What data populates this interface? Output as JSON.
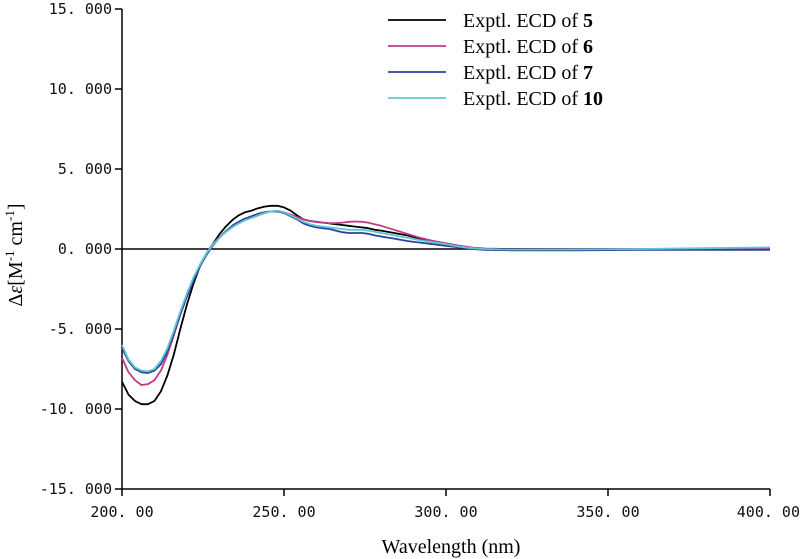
{
  "chart_data": {
    "type": "line",
    "title": "",
    "xlabel": "Wavelength (nm)",
    "ylabel": {
      "prefix": "Δ",
      "symbol": "ε",
      "unit_open": "[M",
      "sup1": "-1",
      "unit_mid": " cm",
      "sup2": "-1",
      "unit_close": "]"
    },
    "xlim": [
      200,
      400
    ],
    "ylim": [
      -15,
      15
    ],
    "x_ticks": [
      200,
      250,
      300,
      350,
      400
    ],
    "x_tick_labels": [
      "200. 00",
      "250. 00",
      "300. 00",
      "350. 00",
      "400. 00"
    ],
    "y_ticks": [
      -15,
      -10,
      -5,
      0,
      5,
      10,
      15
    ],
    "y_tick_labels": [
      "-15. 000",
      "-10. 000",
      "-5. 000",
      "0. 000",
      "5. 000",
      "10. 000",
      "15. 000"
    ],
    "zero_line": true,
    "grid": false,
    "legend_position": "top-right",
    "series": [
      {
        "name": "Exptl. ECD of 5",
        "label_prefix": "Exptl. ECD of ",
        "label_num": "5",
        "color": "#000000",
        "points": [
          [
            200,
            -8.3
          ],
          [
            202,
            -9.1
          ],
          [
            204,
            -9.5
          ],
          [
            206,
            -9.7
          ],
          [
            208,
            -9.7
          ],
          [
            210,
            -9.5
          ],
          [
            212,
            -8.9
          ],
          [
            214,
            -7.9
          ],
          [
            216,
            -6.6
          ],
          [
            218,
            -5.0
          ],
          [
            220,
            -3.5
          ],
          [
            222,
            -2.2
          ],
          [
            224,
            -1.1
          ],
          [
            226,
            -0.3
          ],
          [
            228,
            0.3
          ],
          [
            230,
            0.9
          ],
          [
            232,
            1.4
          ],
          [
            234,
            1.8
          ],
          [
            236,
            2.1
          ],
          [
            238,
            2.3
          ],
          [
            240,
            2.4
          ],
          [
            242,
            2.55
          ],
          [
            244,
            2.65
          ],
          [
            246,
            2.7
          ],
          [
            248,
            2.7
          ],
          [
            250,
            2.6
          ],
          [
            252,
            2.4
          ],
          [
            254,
            2.1
          ],
          [
            256,
            1.85
          ],
          [
            258,
            1.75
          ],
          [
            260,
            1.7
          ],
          [
            262,
            1.65
          ],
          [
            264,
            1.6
          ],
          [
            266,
            1.55
          ],
          [
            268,
            1.5
          ],
          [
            270,
            1.45
          ],
          [
            272,
            1.4
          ],
          [
            274,
            1.35
          ],
          [
            276,
            1.3
          ],
          [
            278,
            1.2
          ],
          [
            280,
            1.15
          ],
          [
            284,
            1.0
          ],
          [
            288,
            0.85
          ],
          [
            292,
            0.65
          ],
          [
            296,
            0.5
          ],
          [
            300,
            0.35
          ],
          [
            304,
            0.2
          ],
          [
            308,
            0.08
          ],
          [
            312,
            0.02
          ],
          [
            320,
            0.0
          ],
          [
            340,
            -0.02
          ],
          [
            360,
            0.0
          ],
          [
            380,
            0.0
          ],
          [
            400,
            0.0
          ]
        ]
      },
      {
        "name": "Exptl. ECD of 6",
        "label_prefix": "Exptl. ECD of ",
        "label_num": "6",
        "color": "#c03a8a",
        "points": [
          [
            200,
            -6.8
          ],
          [
            202,
            -7.7
          ],
          [
            204,
            -8.2
          ],
          [
            206,
            -8.5
          ],
          [
            208,
            -8.45
          ],
          [
            210,
            -8.2
          ],
          [
            212,
            -7.6
          ],
          [
            214,
            -6.6
          ],
          [
            216,
            -5.4
          ],
          [
            218,
            -4.1
          ],
          [
            220,
            -2.9
          ],
          [
            222,
            -1.9
          ],
          [
            224,
            -1.0
          ],
          [
            226,
            -0.3
          ],
          [
            228,
            0.3
          ],
          [
            230,
            0.7
          ],
          [
            232,
            1.1
          ],
          [
            234,
            1.4
          ],
          [
            236,
            1.6
          ],
          [
            238,
            1.8
          ],
          [
            240,
            1.95
          ],
          [
            242,
            2.1
          ],
          [
            244,
            2.25
          ],
          [
            246,
            2.35
          ],
          [
            248,
            2.35
          ],
          [
            250,
            2.3
          ],
          [
            252,
            2.15
          ],
          [
            254,
            2.0
          ],
          [
            256,
            1.85
          ],
          [
            258,
            1.75
          ],
          [
            260,
            1.7
          ],
          [
            262,
            1.65
          ],
          [
            264,
            1.62
          ],
          [
            266,
            1.62
          ],
          [
            268,
            1.65
          ],
          [
            270,
            1.7
          ],
          [
            272,
            1.72
          ],
          [
            274,
            1.7
          ],
          [
            276,
            1.65
          ],
          [
            278,
            1.55
          ],
          [
            280,
            1.45
          ],
          [
            284,
            1.2
          ],
          [
            288,
            0.95
          ],
          [
            292,
            0.7
          ],
          [
            296,
            0.5
          ],
          [
            300,
            0.35
          ],
          [
            304,
            0.2
          ],
          [
            308,
            0.08
          ],
          [
            312,
            0.0
          ],
          [
            320,
            -0.03
          ],
          [
            340,
            -0.03
          ],
          [
            360,
            0.0
          ],
          [
            380,
            0.02
          ],
          [
            400,
            0.05
          ]
        ]
      },
      {
        "name": "Exptl. ECD of 7",
        "label_prefix": "Exptl. ECD of ",
        "label_num": "7",
        "color": "#2e3fa0",
        "points": [
          [
            200,
            -6.2
          ],
          [
            202,
            -7.0
          ],
          [
            204,
            -7.5
          ],
          [
            206,
            -7.7
          ],
          [
            208,
            -7.75
          ],
          [
            210,
            -7.6
          ],
          [
            212,
            -7.2
          ],
          [
            214,
            -6.4
          ],
          [
            216,
            -5.3
          ],
          [
            218,
            -4.1
          ],
          [
            220,
            -3.0
          ],
          [
            222,
            -2.0
          ],
          [
            224,
            -1.1
          ],
          [
            226,
            -0.4
          ],
          [
            228,
            0.2
          ],
          [
            230,
            0.7
          ],
          [
            232,
            1.1
          ],
          [
            234,
            1.45
          ],
          [
            236,
            1.7
          ],
          [
            238,
            1.9
          ],
          [
            240,
            2.05
          ],
          [
            242,
            2.2
          ],
          [
            244,
            2.3
          ],
          [
            246,
            2.35
          ],
          [
            248,
            2.35
          ],
          [
            250,
            2.25
          ],
          [
            252,
            2.05
          ],
          [
            254,
            1.85
          ],
          [
            256,
            1.6
          ],
          [
            258,
            1.45
          ],
          [
            260,
            1.35
          ],
          [
            262,
            1.3
          ],
          [
            264,
            1.25
          ],
          [
            266,
            1.15
          ],
          [
            268,
            1.05
          ],
          [
            270,
            1.0
          ],
          [
            272,
            1.0
          ],
          [
            274,
            1.0
          ],
          [
            276,
            0.95
          ],
          [
            278,
            0.85
          ],
          [
            280,
            0.78
          ],
          [
            284,
            0.65
          ],
          [
            288,
            0.5
          ],
          [
            292,
            0.4
          ],
          [
            296,
            0.3
          ],
          [
            300,
            0.2
          ],
          [
            304,
            0.1
          ],
          [
            308,
            0.0
          ],
          [
            312,
            -0.05
          ],
          [
            320,
            -0.08
          ],
          [
            340,
            -0.08
          ],
          [
            360,
            -0.05
          ],
          [
            380,
            -0.05
          ],
          [
            400,
            -0.05
          ]
        ]
      },
      {
        "name": "Exptl. ECD of 10",
        "label_prefix": "Exptl. ECD of ",
        "label_num": "10",
        "color": "#5cc9cf",
        "points": [
          [
            200,
            -6.0
          ],
          [
            202,
            -6.9
          ],
          [
            204,
            -7.4
          ],
          [
            206,
            -7.6
          ],
          [
            208,
            -7.65
          ],
          [
            210,
            -7.5
          ],
          [
            212,
            -7.0
          ],
          [
            214,
            -6.2
          ],
          [
            216,
            -5.1
          ],
          [
            218,
            -3.9
          ],
          [
            220,
            -2.8
          ],
          [
            222,
            -1.8
          ],
          [
            224,
            -1.0
          ],
          [
            226,
            -0.3
          ],
          [
            228,
            0.25
          ],
          [
            230,
            0.7
          ],
          [
            232,
            1.05
          ],
          [
            234,
            1.35
          ],
          [
            236,
            1.6
          ],
          [
            238,
            1.8
          ],
          [
            240,
            1.95
          ],
          [
            242,
            2.1
          ],
          [
            244,
            2.25
          ],
          [
            246,
            2.35
          ],
          [
            248,
            2.4
          ],
          [
            250,
            2.3
          ],
          [
            252,
            2.1
          ],
          [
            254,
            1.9
          ],
          [
            256,
            1.7
          ],
          [
            258,
            1.55
          ],
          [
            260,
            1.45
          ],
          [
            262,
            1.4
          ],
          [
            264,
            1.35
          ],
          [
            266,
            1.3
          ],
          [
            268,
            1.25
          ],
          [
            270,
            1.2
          ],
          [
            272,
            1.2
          ],
          [
            274,
            1.2
          ],
          [
            276,
            1.15
          ],
          [
            278,
            1.08
          ],
          [
            280,
            1.0
          ],
          [
            284,
            0.85
          ],
          [
            288,
            0.7
          ],
          [
            292,
            0.55
          ],
          [
            296,
            0.42
          ],
          [
            300,
            0.3
          ],
          [
            304,
            0.15
          ],
          [
            308,
            0.05
          ],
          [
            312,
            0.0
          ],
          [
            320,
            -0.03
          ],
          [
            340,
            -0.03
          ],
          [
            360,
            0.0
          ],
          [
            380,
            0.05
          ],
          [
            400,
            0.1
          ]
        ]
      }
    ]
  }
}
